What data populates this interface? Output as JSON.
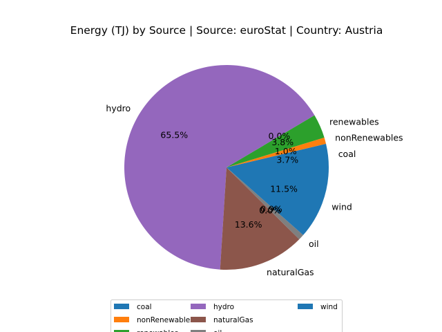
{
  "chart_data": {
    "type": "pie",
    "title": "Energy (TJ) by Source | Source: euroStat | Country: Austria",
    "slices": [
      {
        "label": "coal",
        "percent_label": "3.7%",
        "value": 3.7,
        "color": "#1f77b4"
      },
      {
        "label": "nonRenewables",
        "percent_label": "1.0%",
        "value": 1.0,
        "color": "#ff7f0e"
      },
      {
        "label": "renewables",
        "percent_label": "3.8%",
        "value": 3.8,
        "color": "#2ca02c"
      },
      {
        "label": "",
        "percent_label": "0.0%",
        "value": 0.0,
        "color": "#d62728"
      },
      {
        "label": "hydro",
        "percent_label": "65.5%",
        "value": 65.5,
        "color": "#9467bd"
      },
      {
        "label": "naturalGas",
        "percent_label": "13.6%",
        "value": 13.6,
        "color": "#8c564b"
      },
      {
        "label": "",
        "percent_label": "0.0%",
        "value": 0.0,
        "color": "#e377c2"
      },
      {
        "label": "",
        "percent_label": "0.0%",
        "value": 0.0,
        "color": "#7f7f7f"
      },
      {
        "label": "oil",
        "percent_label": "0.9%",
        "value": 0.9,
        "color": "#7f7f7f"
      },
      {
        "label": "wind",
        "percent_label": "11.5%",
        "value": 11.5,
        "color": "#1f77b4"
      }
    ],
    "legend": {
      "placement": "bottom-center",
      "entries": [
        {
          "label": "coal",
          "color": "#1f77b4"
        },
        {
          "label": "nonRenewables",
          "color": "#ff7f0e"
        },
        {
          "label": "renewables",
          "color": "#2ca02c"
        },
        {
          "label": "hydro",
          "color": "#9467bd"
        },
        {
          "label": "naturalGas",
          "color": "#8c564b"
        },
        {
          "label": "oil",
          "color": "#7f7f7f"
        },
        {
          "label": "wind",
          "color": "#1f77b4"
        }
      ]
    }
  }
}
